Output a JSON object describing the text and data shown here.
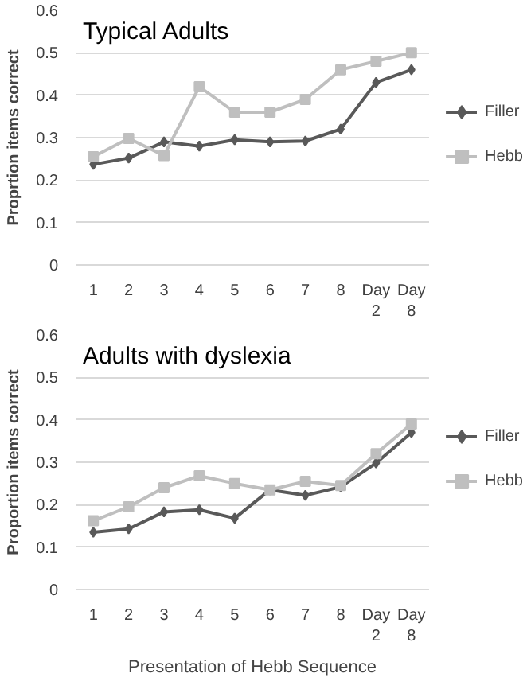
{
  "chart_data": [
    {
      "type": "line",
      "title": "Typical Adults",
      "ylabel": "Proprtion items correct",
      "categories": [
        "1",
        "2",
        "3",
        "4",
        "5",
        "6",
        "7",
        "8",
        "Day 2",
        "Day 8"
      ],
      "ylim": [
        0,
        0.6
      ],
      "yticks": [
        0,
        0.1,
        0.2,
        0.3,
        0.4,
        0.5,
        0.6
      ],
      "grid": "y",
      "legend": "right",
      "series": [
        {
          "name": "Filler",
          "color": "#595959",
          "marker": "diamond",
          "values": [
            0.237,
            0.252,
            0.29,
            0.28,
            0.295,
            0.29,
            0.292,
            0.32,
            0.43,
            0.46
          ]
        },
        {
          "name": "Hebb",
          "color": "#bfbfbf",
          "marker": "square",
          "values": [
            0.255,
            0.298,
            0.258,
            0.42,
            0.36,
            0.36,
            0.39,
            0.46,
            0.48,
            0.5
          ]
        }
      ]
    },
    {
      "type": "line",
      "title": "Adults with dyslexia",
      "ylabel": "Proportion items correct",
      "xlabel": "Presentation of Hebb Sequence",
      "categories": [
        "1",
        "2",
        "3",
        "4",
        "5",
        "6",
        "7",
        "8",
        "Day 2",
        "Day 8"
      ],
      "ylim": [
        0,
        0.6
      ],
      "yticks": [
        0,
        0.1,
        0.2,
        0.3,
        0.4,
        0.5,
        0.6
      ],
      "grid": "y",
      "legend": "right",
      "series": [
        {
          "name": "Filler",
          "color": "#595959",
          "marker": "diamond",
          "values": [
            0.135,
            0.143,
            0.183,
            0.188,
            0.168,
            0.235,
            0.222,
            0.242,
            0.298,
            0.37
          ]
        },
        {
          "name": "Hebb",
          "color": "#bfbfbf",
          "marker": "square",
          "values": [
            0.162,
            0.195,
            0.24,
            0.268,
            0.25,
            0.235,
            0.255,
            0.245,
            0.32,
            0.39
          ]
        }
      ]
    }
  ]
}
